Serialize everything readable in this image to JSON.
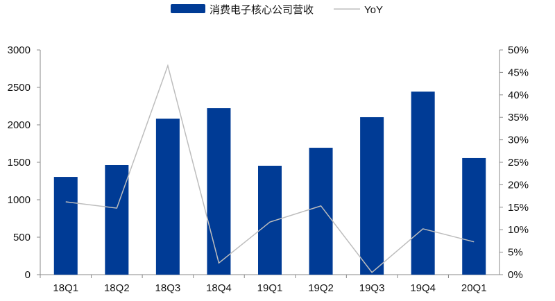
{
  "chart_data": {
    "type": "bar",
    "categories": [
      "18Q1",
      "18Q2",
      "18Q3",
      "18Q4",
      "19Q1",
      "19Q2",
      "19Q3",
      "19Q4",
      "20Q1"
    ],
    "series": [
      {
        "name": "消费电子核心公司营收",
        "type": "bar",
        "axis": "left",
        "color": "#003B95",
        "values": [
          1305,
          1463,
          2083,
          2222,
          1454,
          1694,
          2102,
          2444,
          1556
        ]
      },
      {
        "name": "YoY",
        "type": "line",
        "axis": "right",
        "color": "#BDBDBD",
        "values": [
          16.2,
          14.8,
          46.5,
          2.6,
          11.7,
          15.3,
          0.5,
          10.2,
          7.3
        ]
      }
    ],
    "left_axis": {
      "ylim": [
        0,
        3000
      ],
      "ticks": [
        "0",
        "500",
        "1000",
        "1500",
        "2000",
        "2500",
        "3000"
      ]
    },
    "right_axis": {
      "ylim": [
        0,
        50
      ],
      "ticks": [
        "0%",
        "5%",
        "10%",
        "15%",
        "20%",
        "25%",
        "30%",
        "35%",
        "40%",
        "45%",
        "50%"
      ]
    },
    "grid": false,
    "legend": "top"
  }
}
